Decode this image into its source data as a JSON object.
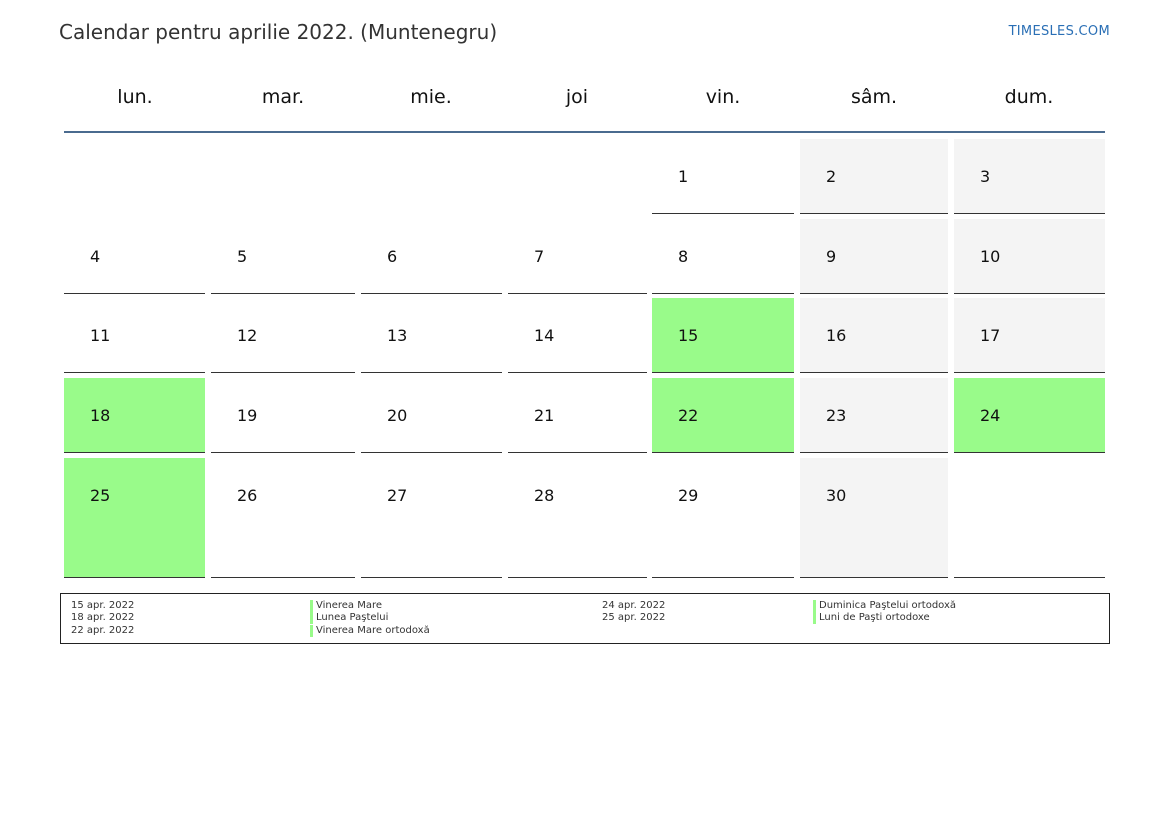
{
  "header": {
    "title": "Calendar pentru aprilie 2022. (Muntenegru)",
    "brand": "TIMESLES.COM"
  },
  "weekdays": [
    "lun.",
    "mar.",
    "mie.",
    "joi",
    "vin.",
    "sâm.",
    "dum."
  ],
  "colors": {
    "holiday": "#99fb8a",
    "weekend": "#f4f4f4",
    "header_line": "#4a6b8f",
    "brand": "#2a6fb5"
  },
  "weeks": [
    [
      null,
      null,
      null,
      null,
      {
        "day": "1",
        "type": "normal"
      },
      {
        "day": "2",
        "type": "weekend"
      },
      {
        "day": "3",
        "type": "weekend"
      }
    ],
    [
      {
        "day": "4",
        "type": "normal"
      },
      {
        "day": "5",
        "type": "normal"
      },
      {
        "day": "6",
        "type": "normal"
      },
      {
        "day": "7",
        "type": "normal"
      },
      {
        "day": "8",
        "type": "normal"
      },
      {
        "day": "9",
        "type": "weekend"
      },
      {
        "day": "10",
        "type": "weekend"
      }
    ],
    [
      {
        "day": "11",
        "type": "normal"
      },
      {
        "day": "12",
        "type": "normal"
      },
      {
        "day": "13",
        "type": "normal"
      },
      {
        "day": "14",
        "type": "normal"
      },
      {
        "day": "15",
        "type": "holiday"
      },
      {
        "day": "16",
        "type": "weekend"
      },
      {
        "day": "17",
        "type": "weekend"
      }
    ],
    [
      {
        "day": "18",
        "type": "holiday"
      },
      {
        "day": "19",
        "type": "normal"
      },
      {
        "day": "20",
        "type": "normal"
      },
      {
        "day": "21",
        "type": "normal"
      },
      {
        "day": "22",
        "type": "holiday"
      },
      {
        "day": "23",
        "type": "weekend"
      },
      {
        "day": "24",
        "type": "holiday"
      }
    ],
    [
      {
        "day": "25",
        "type": "holiday"
      },
      {
        "day": "26",
        "type": "normal"
      },
      {
        "day": "27",
        "type": "normal"
      },
      {
        "day": "28",
        "type": "normal"
      },
      {
        "day": "29",
        "type": "normal"
      },
      {
        "day": "30",
        "type": "weekend"
      },
      {
        "day": "",
        "type": "normal"
      }
    ]
  ],
  "holidays": [
    {
      "date": "15 apr. 2022",
      "name": "Vinerea Mare"
    },
    {
      "date": "18 apr. 2022",
      "name": "Lunea Paştelui"
    },
    {
      "date": "22 apr. 2022",
      "name": "Vinerea Mare ortodoxă"
    },
    {
      "date": "24 apr. 2022",
      "name": "Duminica Paştelui ortodoxă"
    },
    {
      "date": "25 apr. 2022",
      "name": "Luni de Paşti ortodoxe"
    }
  ]
}
